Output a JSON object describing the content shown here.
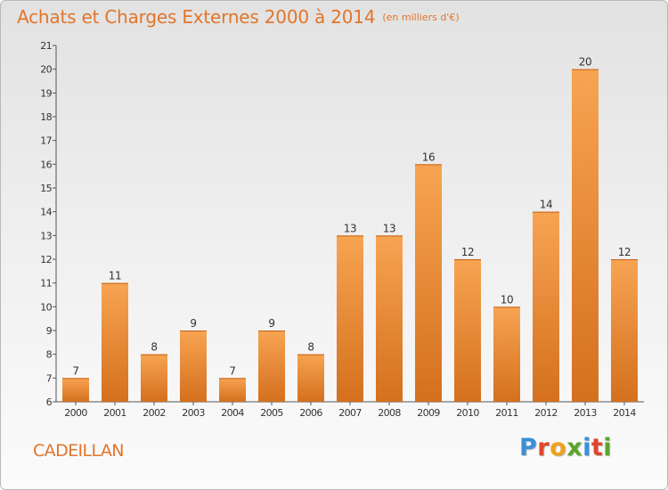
{
  "header": {
    "title": "Achats et Charges Externes 2000 à 2014",
    "unit": "(en milliers d'€)"
  },
  "footer": {
    "place": "CADEILLAN",
    "logo": "Proxiti"
  },
  "colors": {
    "accent": "#e2752a",
    "bar_top": "#f7a452",
    "bar_bottom": "#d4701e",
    "axis": "#555555"
  },
  "chart_data": {
    "type": "bar",
    "categories": [
      "2000",
      "2001",
      "2002",
      "2003",
      "2004",
      "2005",
      "2006",
      "2007",
      "2008",
      "2009",
      "2010",
      "2011",
      "2012",
      "2013",
      "2014"
    ],
    "values": [
      7,
      11,
      8,
      9,
      7,
      9,
      8,
      13,
      13,
      16,
      12,
      10,
      14,
      20,
      12
    ],
    "title": "Achats et Charges Externes 2000 à 2014",
    "subtitle": "(en milliers d'€)",
    "ylim": [
      6,
      21
    ],
    "yticks": [
      6,
      7,
      8,
      9,
      10,
      11,
      12,
      13,
      14,
      15,
      16,
      17,
      18,
      19,
      20,
      21
    ],
    "data_labels": true,
    "grid": false,
    "legend": "none"
  }
}
